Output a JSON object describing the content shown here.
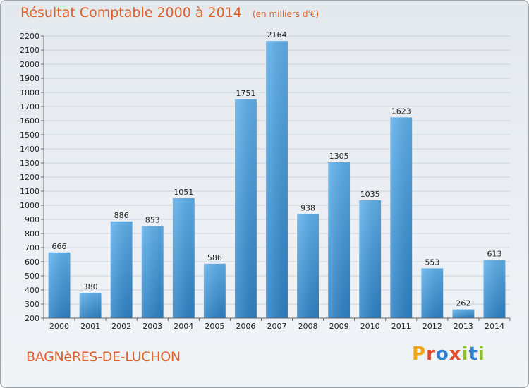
{
  "title": "Résultat Comptable 2000 à 2014",
  "subtitle": "(en milliers d'€)",
  "city": "BAGNèRES-DE-LUCHON",
  "brand": {
    "letters": [
      "P",
      "r",
      "o",
      "x",
      "i",
      "t",
      "i"
    ],
    "colors": [
      "#f2a516",
      "#e5492b",
      "#2d7fcf",
      "#e5492b",
      "#8cbf2b",
      "#2d7fcf",
      "#8cbf2b"
    ]
  },
  "colors": {
    "bar_top": "#5fb1ec",
    "bar_bottom": "#2d82c6",
    "grid": "#c9d3dc",
    "axis": "#666666"
  },
  "chart_data": {
    "type": "bar",
    "title": "Résultat Comptable 2000 à 2014",
    "subtitle": "(en milliers d'€)",
    "xlabel": "",
    "ylabel": "",
    "ylim": [
      200,
      2200
    ],
    "ytick_step": 100,
    "grid": true,
    "categories": [
      "2000",
      "2001",
      "2002",
      "2003",
      "2004",
      "2005",
      "2006",
      "2007",
      "2008",
      "2009",
      "2010",
      "2011",
      "2012",
      "2013",
      "2014"
    ],
    "values": [
      666,
      380,
      886,
      853,
      1051,
      586,
      1751,
      2164,
      938,
      1305,
      1035,
      1623,
      553,
      262,
      613
    ]
  }
}
